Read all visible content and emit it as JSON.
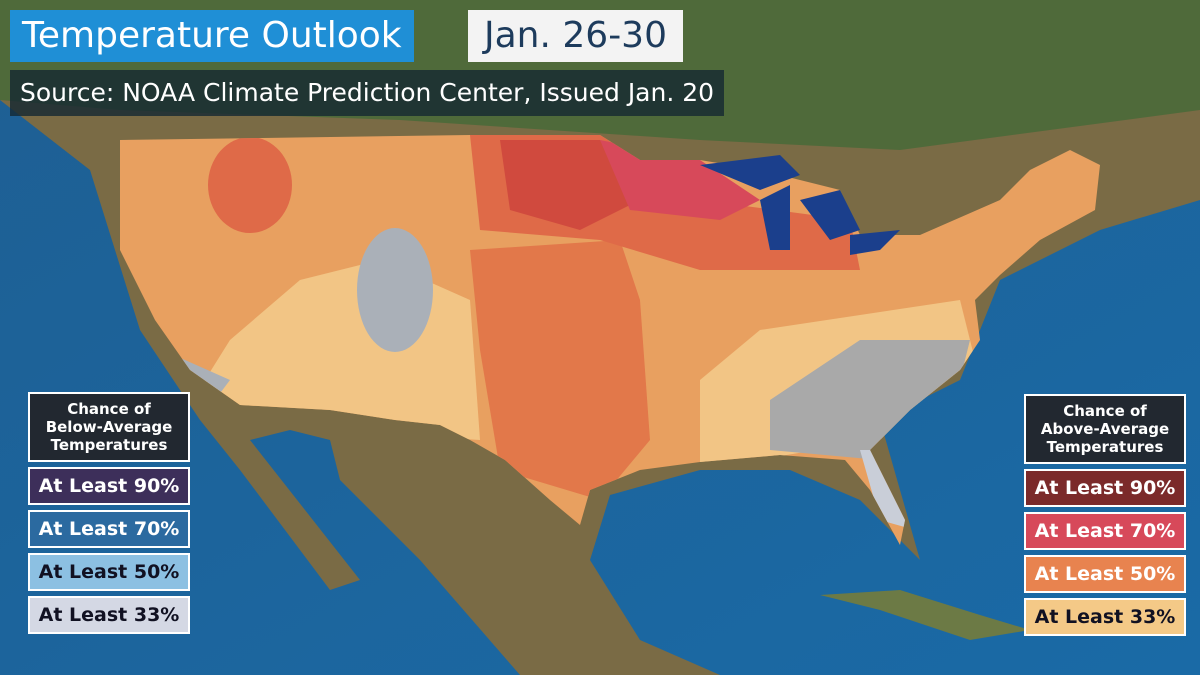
{
  "header": {
    "title": "Temperature Outlook",
    "dates": "Jan. 26-30",
    "source": "Source: NOAA Climate Prediction Center, Issued Jan. 20"
  },
  "legends": [
    {
      "heading": [
        "Chance of",
        "Below-Average",
        "Temperatures"
      ],
      "items": [
        "At Least 90%",
        "At Least 70%",
        "At Least 50%",
        "At Least 33%"
      ]
    },
    {
      "heading": [
        "Chance of",
        "Above-Average",
        "Temperatures"
      ],
      "items": [
        "At Least 90%",
        "At Least 70%",
        "At Least 50%",
        "At Least 33%"
      ]
    }
  ]
}
